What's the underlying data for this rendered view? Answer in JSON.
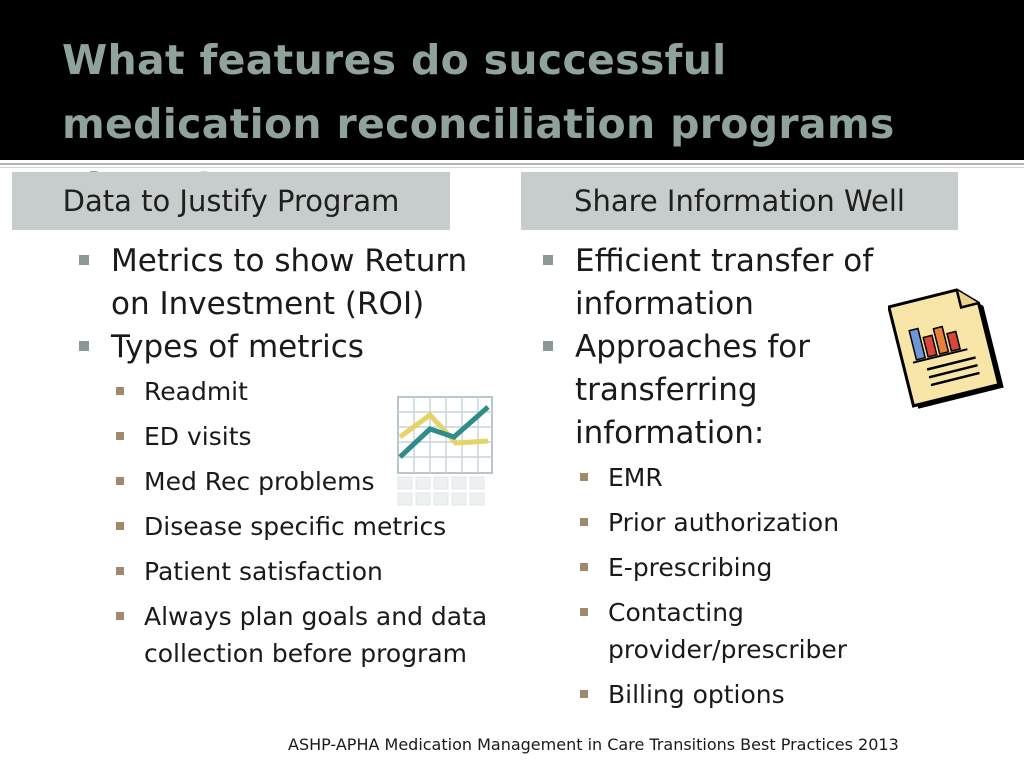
{
  "title": "What features do successful medication reconciliation programs share?",
  "left": {
    "header": "Data to Justify Program",
    "items": [
      {
        "text": "Metrics to show Return on Investment (ROI)"
      },
      {
        "text": "Types of metrics"
      }
    ],
    "subitems": [
      "Readmit",
      "ED visits",
      "Med Rec problems",
      "Disease specific metrics",
      "Patient satisfaction",
      "Always plan goals and data collection before program"
    ]
  },
  "right": {
    "header": "Share Information Well",
    "items": [
      {
        "text": "Efficient transfer of information"
      },
      {
        "text": "Approaches for transferring information:"
      }
    ],
    "subitems": [
      "EMR",
      "Prior authorization",
      "E-prescribing",
      "Contacting provider/prescriber",
      "Billing options"
    ]
  },
  "icons": {
    "chart": "line-chart-icon",
    "report": "report-document-icon"
  },
  "colors": {
    "title_text": "#8fa39a",
    "title_bg": "#000000",
    "header_bg": "#c6cdcc",
    "bullet_main": "#8c9897",
    "bullet_sub": "#a08a6e"
  },
  "footer": "ASHP-APHA Medication Management in Care Transitions Best Practices 2013"
}
